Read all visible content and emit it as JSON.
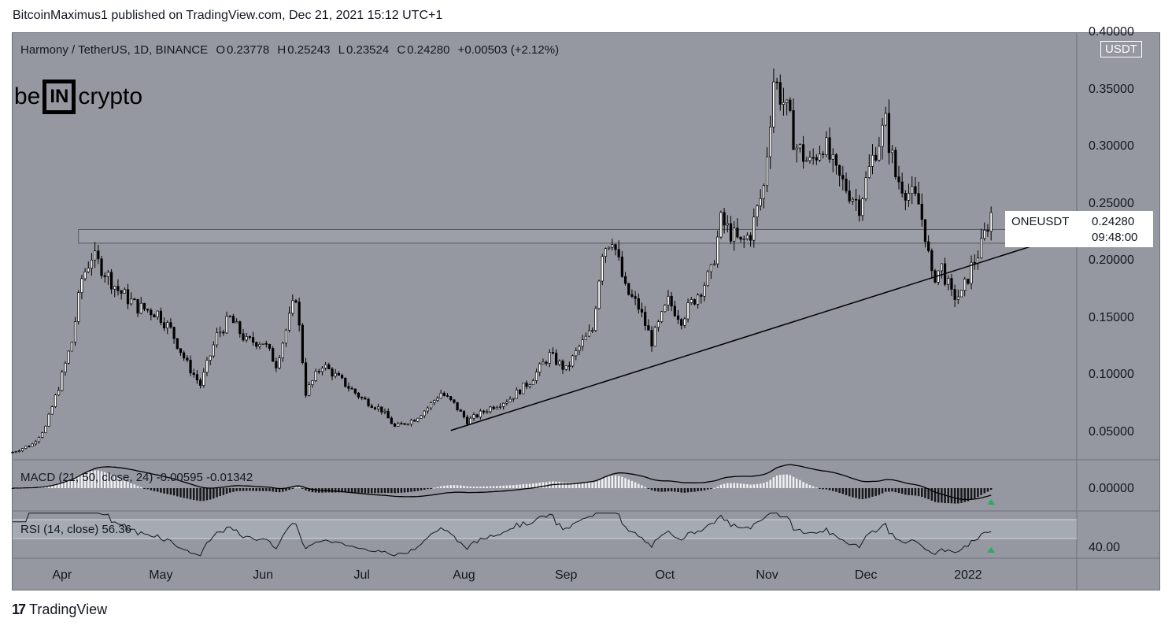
{
  "header": "BitcoinMaximus1 published on TradingView.com, Dec 21, 2021 15:12 UTC+1",
  "legend": {
    "pair": "Harmony / TetherUS, 1D, BINANCE",
    "o_label": "O",
    "o": "0.23778",
    "h_label": "H",
    "h": "0.25243",
    "l_label": "L",
    "l": "0.23524",
    "c_label": "C",
    "c": "0.24280",
    "change": "+0.00503 (+2.12%)"
  },
  "logo": {
    "left": "be",
    "box": "IN",
    "right": "crypto"
  },
  "currency": "USDT",
  "price_tag": {
    "symbol": "ONEUSDT",
    "value": "0.24280",
    "countdown": "09:48:00"
  },
  "macd": {
    "label": "MACD (21, 50, close, 24)",
    "v1": "-0.00595",
    "v2": "-0.01342",
    "axis": "0.00000"
  },
  "rsi": {
    "label": "RSI (14, close)",
    "value": "56.36",
    "axis": "40.00"
  },
  "footer": {
    "brand": "TradingView"
  },
  "colors": {
    "background": "#9598a1",
    "candles": "#000000",
    "signal": "#27ae60",
    "label_bg": "#ffffff"
  },
  "chart_data": {
    "type": "candlestick",
    "title": "Harmony / TetherUS, 1D, BINANCE",
    "y_ticks": [
      "0.05000",
      "0.10000",
      "0.15000",
      "0.20000",
      "0.25000",
      "0.30000",
      "0.35000",
      "0.40000"
    ],
    "y_tick_values": [
      0.05,
      0.1,
      0.15,
      0.2,
      0.25,
      0.3,
      0.35,
      0.4
    ],
    "ylim": [
      0.027,
      0.4
    ],
    "x_ticks": [
      "Apr",
      "May",
      "Jun",
      "Jul",
      "Aug",
      "Sep",
      "Oct",
      "Nov",
      "Dec",
      "2022"
    ],
    "x_tick_days": [
      15,
      45,
      76,
      106,
      137,
      168,
      198,
      229,
      259,
      290
    ],
    "xlim_days": [
      0,
      323
    ],
    "close_path": [
      [
        0,
        0.033
      ],
      [
        6,
        0.04
      ],
      [
        10,
        0.055
      ],
      [
        14,
        0.09
      ],
      [
        18,
        0.13
      ],
      [
        21,
        0.185
      ],
      [
        24,
        0.205
      ],
      [
        27,
        0.195
      ],
      [
        32,
        0.175
      ],
      [
        38,
        0.16
      ],
      [
        44,
        0.155
      ],
      [
        48,
        0.14
      ],
      [
        53,
        0.11
      ],
      [
        57,
        0.092
      ],
      [
        62,
        0.135
      ],
      [
        66,
        0.15
      ],
      [
        71,
        0.13
      ],
      [
        76,
        0.13
      ],
      [
        80,
        0.11
      ],
      [
        84,
        0.15
      ],
      [
        86,
        0.17
      ],
      [
        89,
        0.085
      ],
      [
        94,
        0.11
      ],
      [
        100,
        0.095
      ],
      [
        106,
        0.08
      ],
      [
        112,
        0.07
      ],
      [
        116,
        0.055
      ],
      [
        122,
        0.062
      ],
      [
        126,
        0.072
      ],
      [
        130,
        0.085
      ],
      [
        134,
        0.075
      ],
      [
        138,
        0.06
      ],
      [
        145,
        0.072
      ],
      [
        151,
        0.08
      ],
      [
        157,
        0.095
      ],
      [
        163,
        0.118
      ],
      [
        168,
        0.105
      ],
      [
        172,
        0.125
      ],
      [
        176,
        0.14
      ],
      [
        179,
        0.21
      ],
      [
        182,
        0.222
      ],
      [
        186,
        0.175
      ],
      [
        190,
        0.16
      ],
      [
        194,
        0.13
      ],
      [
        199,
        0.165
      ],
      [
        203,
        0.15
      ],
      [
        208,
        0.172
      ],
      [
        212,
        0.19
      ],
      [
        215,
        0.235
      ],
      [
        218,
        0.225
      ],
      [
        221,
        0.215
      ],
      [
        224,
        0.225
      ],
      [
        228,
        0.265
      ],
      [
        231,
        0.36
      ],
      [
        234,
        0.34
      ],
      [
        238,
        0.3
      ],
      [
        242,
        0.285
      ],
      [
        246,
        0.305
      ],
      [
        250,
        0.275
      ],
      [
        253,
        0.265
      ],
      [
        257,
        0.25
      ],
      [
        262,
        0.3
      ],
      [
        265,
        0.32
      ],
      [
        268,
        0.275
      ],
      [
        272,
        0.26
      ],
      [
        275,
        0.25
      ],
      [
        277,
        0.225
      ],
      [
        279,
        0.185
      ],
      [
        282,
        0.195
      ],
      [
        285,
        0.17
      ],
      [
        288,
        0.17
      ],
      [
        291,
        0.195
      ],
      [
        294,
        0.213
      ],
      [
        297,
        0.243
      ]
    ],
    "support_line": [
      [
        133,
        0.052
      ],
      [
        322,
        0.225
      ]
    ],
    "resistance_zone": [
      0.216,
      0.228
    ],
    "resistance_days": [
      20,
      321
    ],
    "last_price": 0.2428,
    "macd": {
      "params": [
        21,
        50,
        24
      ],
      "value": -0.00595,
      "signal": -0.01342
    },
    "rsi": {
      "period": 14,
      "value": 56.36,
      "bands": [
        30,
        70
      ]
    }
  }
}
